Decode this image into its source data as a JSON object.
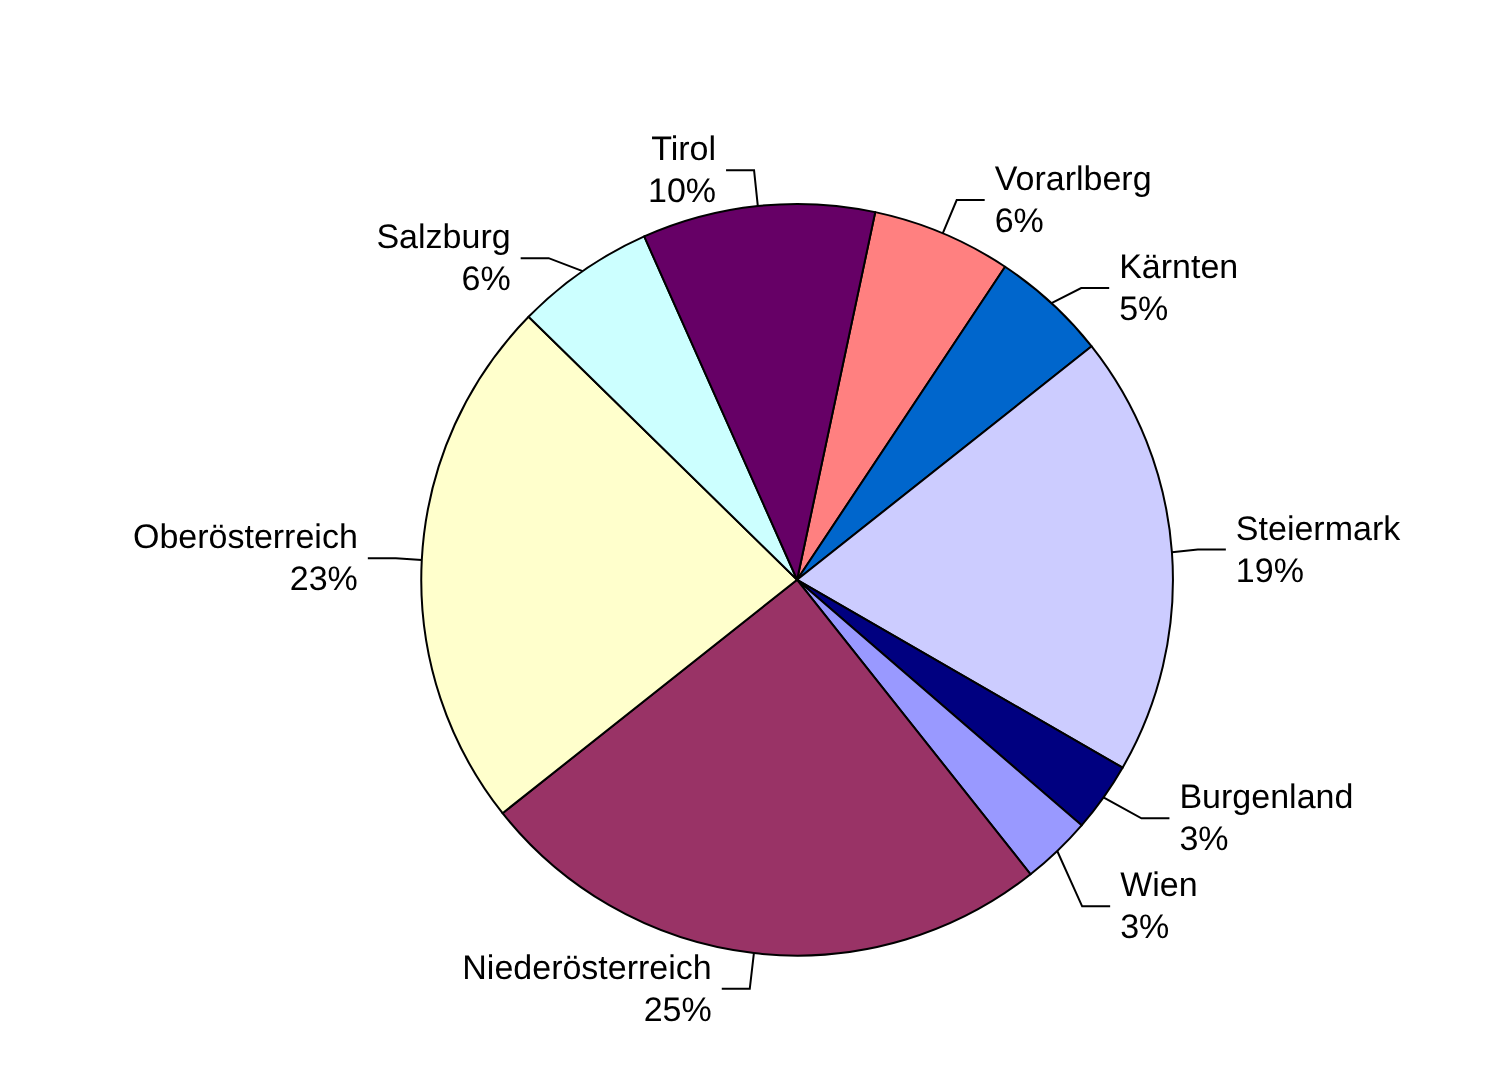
{
  "chart_data": {
    "type": "pie",
    "categories": [
      "Vorarlberg",
      "Kärnten",
      "Steiermark",
      "Burgenland",
      "Wien",
      "Niederösterreich",
      "Oberösterreich",
      "Salzburg",
      "Tirol"
    ],
    "values": [
      6,
      5,
      19,
      3,
      3,
      25,
      23,
      6,
      10
    ],
    "colors": [
      "#ff8080",
      "#0066cc",
      "#ccccff",
      "#000080",
      "#9999ff",
      "#993366",
      "#ffffcc",
      "#ccffff",
      "#660066"
    ],
    "value_labels": [
      "6%",
      "5%",
      "19%",
      "3%",
      "3%",
      "25%",
      "23%",
      "6%",
      "10%"
    ],
    "legend": false
  }
}
